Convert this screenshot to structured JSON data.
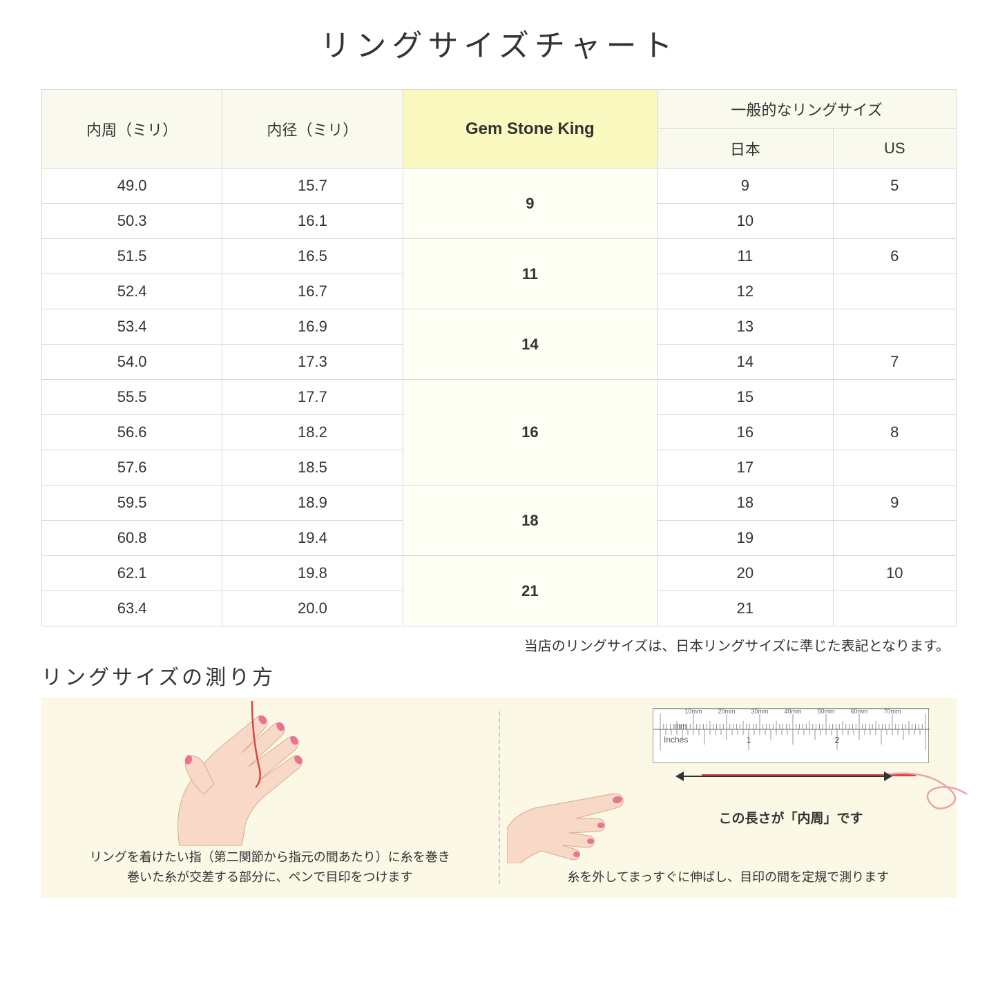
{
  "title": "リングサイズチャート",
  "headers": {
    "circumference": "内周（ミリ）",
    "diameter": "内径（ミリ）",
    "gsk": "Gem Stone King",
    "general": "一般的なリングサイズ",
    "japan": "日本",
    "us": "US"
  },
  "groups": [
    {
      "gsk": "9",
      "rows": [
        {
          "c": "49.0",
          "d": "15.7",
          "jp": "9",
          "us": "5"
        },
        {
          "c": "50.3",
          "d": "16.1",
          "jp": "10",
          "us": ""
        }
      ]
    },
    {
      "gsk": "11",
      "rows": [
        {
          "c": "51.5",
          "d": "16.5",
          "jp": "11",
          "us": "6"
        },
        {
          "c": "52.4",
          "d": "16.7",
          "jp": "12",
          "us": ""
        }
      ]
    },
    {
      "gsk": "14",
      "rows": [
        {
          "c": "53.4",
          "d": "16.9",
          "jp": "13",
          "us": ""
        },
        {
          "c": "54.0",
          "d": "17.3",
          "jp": "14",
          "us": "7"
        }
      ]
    },
    {
      "gsk": "16",
      "rows": [
        {
          "c": "55.5",
          "d": "17.7",
          "jp": "15",
          "us": ""
        },
        {
          "c": "56.6",
          "d": "18.2",
          "jp": "16",
          "us": "8"
        },
        {
          "c": "57.6",
          "d": "18.5",
          "jp": "17",
          "us": ""
        }
      ]
    },
    {
      "gsk": "18",
      "rows": [
        {
          "c": "59.5",
          "d": "18.9",
          "jp": "18",
          "us": "9"
        },
        {
          "c": "60.8",
          "d": "19.4",
          "jp": "19",
          "us": ""
        }
      ]
    },
    {
      "gsk": "21",
      "rows": [
        {
          "c": "62.1",
          "d": "19.8",
          "jp": "20",
          "us": "10"
        },
        {
          "c": "63.4",
          "d": "20.0",
          "jp": "21",
          "us": ""
        }
      ]
    }
  ],
  "note": "当店のリングサイズは、日本リングサイズに準じた表記となります。",
  "howto_title": "リングサイズの測り方",
  "panel1_caption": "リングを着けたい指（第二関節から指元の間あたり）に糸を巻き\n巻いた糸が交差する部分に、ペンで目印をつけます",
  "panel2_measure": "この長さが「内周」です",
  "panel2_caption": "糸を外してまっすぐに伸ばし、目印の間を定規で測ります",
  "ruler": {
    "mm_label": "mm",
    "mm_ticks": [
      "10mm",
      "20mm",
      "30mm",
      "40mm",
      "50mm",
      "60mm",
      "70mm"
    ],
    "inches_label": "Inches",
    "inch_ticks": [
      "1",
      "2"
    ]
  },
  "colors": {
    "header_bg": "#f9f9ee",
    "gsk_header_bg": "#f9f9c0",
    "gsk_cell_bg": "#fefff5",
    "howto_bg": "#fbf8e6",
    "skin": "#f8d9c8",
    "nail": "#e8758f",
    "thread": "#d44"
  }
}
